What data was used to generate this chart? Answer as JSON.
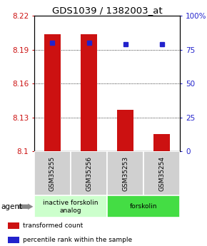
{
  "title": "GDS1039 / 1382003_at",
  "samples": [
    "GSM35255",
    "GSM35256",
    "GSM35253",
    "GSM35254"
  ],
  "bar_values": [
    8.204,
    8.204,
    8.137,
    8.115
  ],
  "percentile_values": [
    80,
    80,
    79,
    79
  ],
  "ylim_left": [
    8.1,
    8.22
  ],
  "ylim_right": [
    0,
    100
  ],
  "yticks_left": [
    8.1,
    8.13,
    8.16,
    8.19,
    8.22
  ],
  "yticks_right": [
    0,
    25,
    50,
    75,
    100
  ],
  "ytick_labels_left": [
    "8.1",
    "8.13",
    "8.16",
    "8.19",
    "8.22"
  ],
  "ytick_labels_right": [
    "0",
    "25",
    "50",
    "75",
    "100%"
  ],
  "bar_color": "#cc1111",
  "dot_color": "#2222cc",
  "bar_bottom": 8.1,
  "agent_groups": [
    {
      "label": "inactive forskolin\nanalog",
      "span": [
        0,
        2
      ],
      "color": "#ccffcc"
    },
    {
      "label": "forskolin",
      "span": [
        2,
        4
      ],
      "color": "#44dd44"
    }
  ],
  "agent_label": "agent",
  "legend_items": [
    {
      "color": "#cc1111",
      "label": "transformed count"
    },
    {
      "color": "#2222cc",
      "label": "percentile rank within the sample"
    }
  ],
  "bar_width": 0.45,
  "title_fontsize": 9.5,
  "tick_fontsize": 7.5,
  "sample_fontsize": 6.5,
  "legend_fontsize": 6.5,
  "agent_fontsize": 7.5,
  "group_fontsize": 6.5
}
